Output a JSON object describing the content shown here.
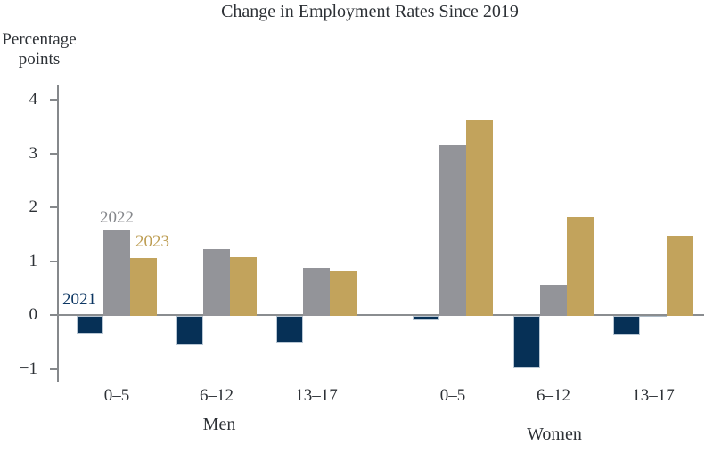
{
  "title": "Change in Employment Rates Since 2019",
  "y_axis": {
    "unit_label_line1": "Percentage",
    "unit_label_line2": "points",
    "ticks": [
      {
        "label": "4",
        "value": 4
      },
      {
        "label": "3",
        "value": 3
      },
      {
        "label": "2",
        "value": 2
      },
      {
        "label": "1",
        "value": 1
      },
      {
        "label": "0",
        "value": 0
      },
      {
        "label": "−1",
        "value": -1
      }
    ]
  },
  "colors": {
    "axis": "#85888b",
    "baseline": "#8a8d90",
    "text": "#2d3136",
    "near_zero_bar": "#aebbc6"
  },
  "chart_data": {
    "type": "bar",
    "title": "Change in Employment Rates Since 2019",
    "xlabel": "",
    "ylabel": "Percentage points",
    "ylim": [
      -1.5,
      4.4
    ],
    "y_ticks": [
      4,
      3,
      2,
      1,
      0,
      -1
    ],
    "grid": false,
    "legend_position": "inline labels above first bar group",
    "categories": [
      "0–5",
      "6–12",
      "13–17",
      "0–5",
      "6–12",
      "13–17"
    ],
    "sections": [
      {
        "label": "Men",
        "category_indexes": [
          0,
          1,
          2
        ]
      },
      {
        "label": "Women",
        "category_indexes": [
          3,
          4,
          5
        ]
      }
    ],
    "series": [
      {
        "name": "2021",
        "color": "#063056",
        "edge_color": "#b9c7d4",
        "label_color": "#0d3763",
        "values": [
          -0.33,
          -0.55,
          -0.49,
          -0.08,
          -0.97,
          -0.35
        ]
      },
      {
        "name": "2022",
        "color": "#939499",
        "edge_color": null,
        "label_color": "#85878b",
        "values": [
          1.6,
          1.24,
          0.9,
          3.18,
          0.58,
          -0.02
        ]
      },
      {
        "name": "2023",
        "color": "#c2a35c",
        "edge_color": null,
        "label_color": "#bd9d52",
        "values": [
          1.08,
          1.09,
          0.83,
          3.63,
          1.83,
          1.49
        ]
      }
    ],
    "render_overrides": [
      {
        "series_index": 1,
        "value_index": 5,
        "color": "#aebbc6"
      }
    ]
  }
}
